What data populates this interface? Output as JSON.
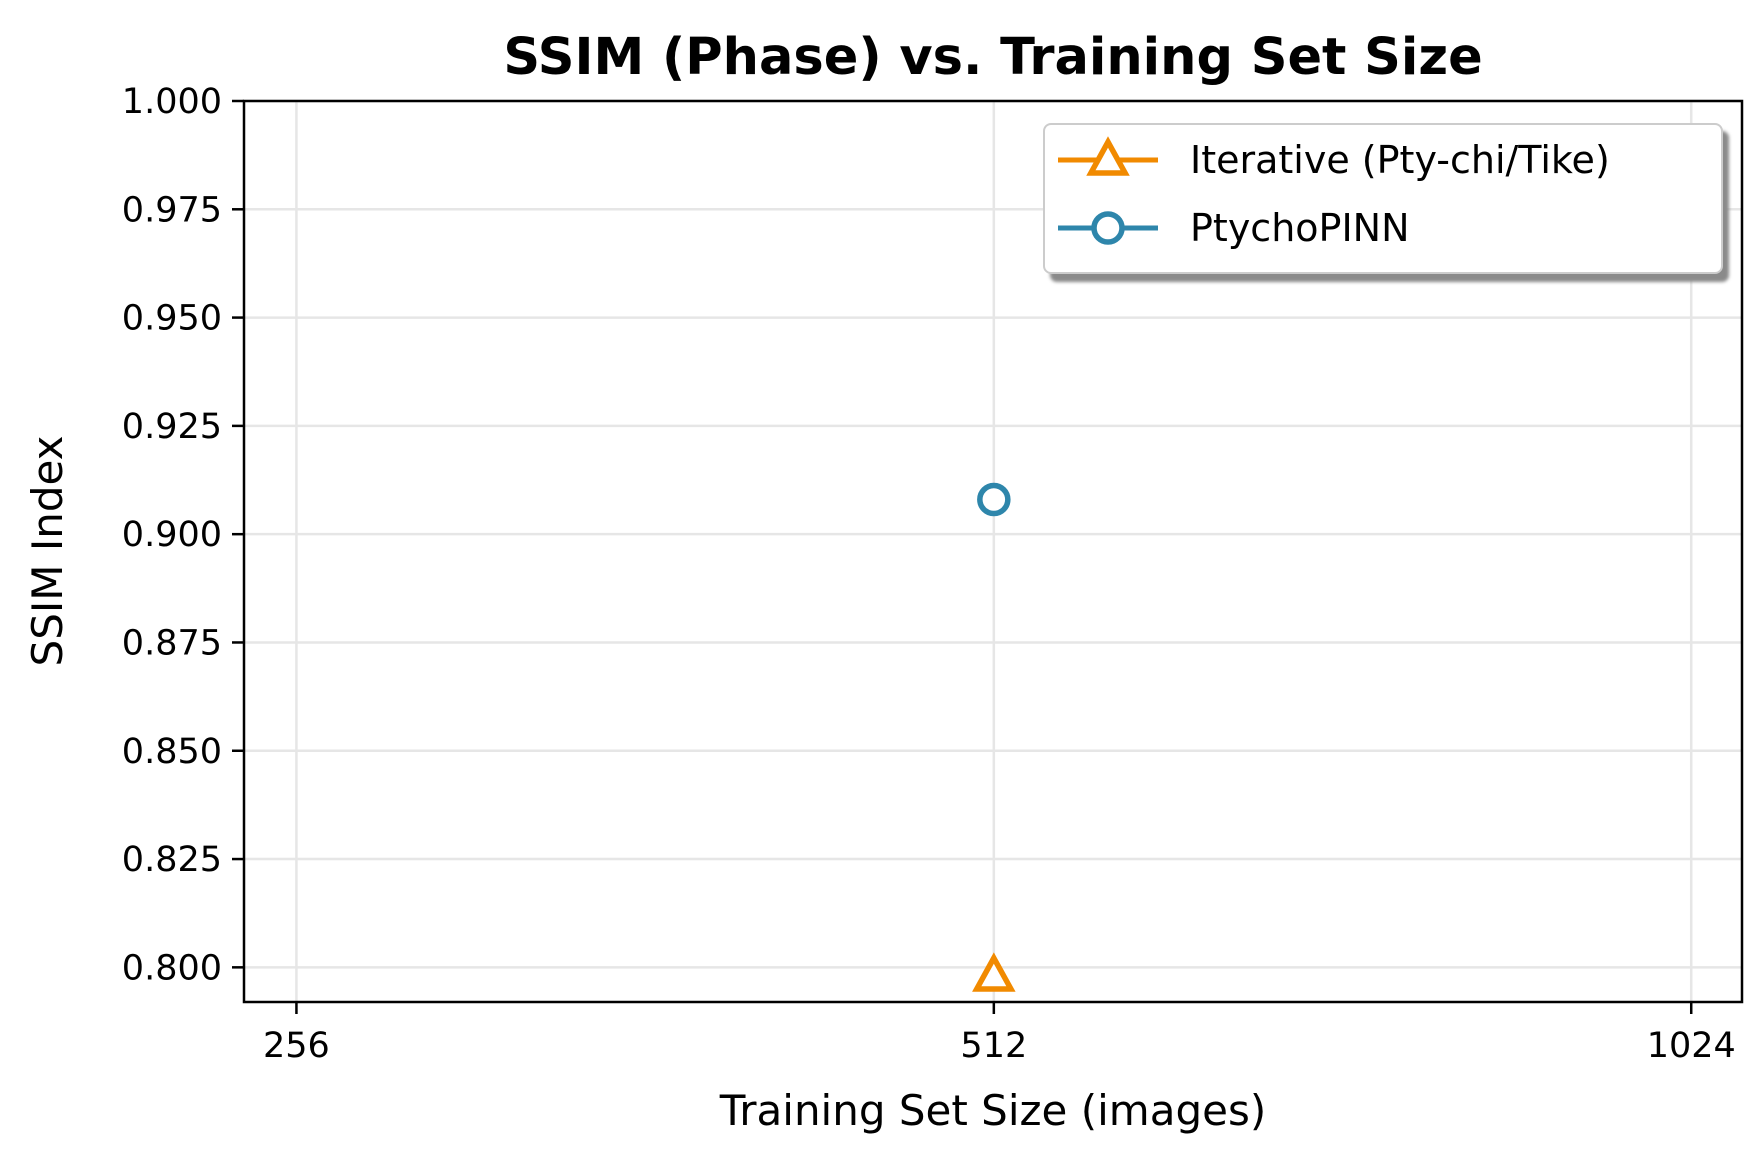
{
  "chart_data": {
    "type": "line",
    "title": "SSIM (Phase) vs. Training Set Size",
    "xlabel": "Training Set Size (images)",
    "ylabel": "SSIM Index",
    "x_scale": "log2",
    "x_ticks": [
      256,
      512,
      1024
    ],
    "x_tick_labels": [
      "256",
      "512",
      "1024"
    ],
    "xlim": [
      243,
      1077
    ],
    "ylim": [
      0.792,
      1.0
    ],
    "y_ticks": [
      0.8,
      0.825,
      0.85,
      0.875,
      0.9,
      0.925,
      0.95,
      0.975,
      1.0
    ],
    "y_tick_labels": [
      "0.800",
      "0.825",
      "0.850",
      "0.875",
      "0.900",
      "0.925",
      "0.950",
      "0.975",
      "1.000"
    ],
    "grid": true,
    "legend_position": "top-right",
    "series": [
      {
        "name": "Iterative (Pty-chi/Tike)",
        "marker": "triangle",
        "color": "#f18a00",
        "points": [
          {
            "x": 512,
            "y": 0.798
          }
        ]
      },
      {
        "name": "PtychoPINN",
        "marker": "circle",
        "color": "#2e86ab",
        "points": [
          {
            "x": 512,
            "y": 0.908
          }
        ]
      }
    ]
  }
}
